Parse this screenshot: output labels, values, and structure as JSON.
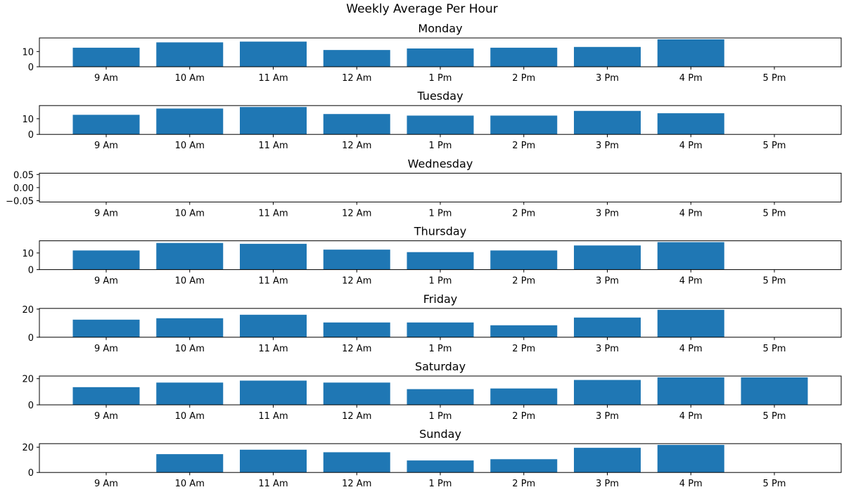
{
  "title": "Weekly Average Per Hour",
  "colors": {
    "bar": "#1f77b4",
    "axis": "#000000"
  },
  "chart_data": [
    {
      "type": "bar",
      "title": "Monday",
      "categories": [
        "9 Am",
        "10 Am",
        "11 Am",
        "12 Am",
        "1 Pm",
        "2 Pm",
        "3 Pm",
        "4 Pm",
        "5 Pm"
      ],
      "values": [
        12.5,
        16,
        16.5,
        11,
        12,
        12.5,
        13,
        18,
        0
      ],
      "yticks": [
        0,
        10
      ],
      "ylim": [
        0,
        18.9
      ],
      "grid": false
    },
    {
      "type": "bar",
      "title": "Tuesday",
      "categories": [
        "9 Am",
        "10 Am",
        "11 Am",
        "12 Am",
        "1 Pm",
        "2 Pm",
        "3 Pm",
        "4 Pm",
        "5 Pm"
      ],
      "values": [
        12.5,
        16.5,
        17.5,
        13,
        12,
        12,
        15,
        13.5,
        0
      ],
      "yticks": [
        0,
        10
      ],
      "ylim": [
        0,
        18.4
      ],
      "grid": false
    },
    {
      "type": "bar",
      "title": "Wednesday",
      "categories": [
        "9 Am",
        "10 Am",
        "11 Am",
        "12 Am",
        "1 Pm",
        "2 Pm",
        "3 Pm",
        "4 Pm",
        "5 Pm"
      ],
      "values": [
        0,
        0,
        0,
        0,
        0,
        0,
        0,
        0,
        0
      ],
      "yticks": [
        -0.05,
        0,
        0.05
      ],
      "ytick_labels": [
        "−0.05",
        "0.00",
        "0.05"
      ],
      "ylim": [
        -0.055,
        0.055
      ],
      "grid": false
    },
    {
      "type": "bar",
      "title": "Thursday",
      "categories": [
        "9 Am",
        "10 Am",
        "11 Am",
        "12 Am",
        "1 Pm",
        "2 Pm",
        "3 Pm",
        "4 Pm",
        "5 Pm"
      ],
      "values": [
        11.5,
        16,
        15.5,
        12,
        10.5,
        11.5,
        14.5,
        16.5,
        0
      ],
      "yticks": [
        0,
        10
      ],
      "ylim": [
        0,
        17.3
      ],
      "grid": false
    },
    {
      "type": "bar",
      "title": "Friday",
      "categories": [
        "9 Am",
        "10 Am",
        "11 Am",
        "12 Am",
        "1 Pm",
        "2 Pm",
        "3 Pm",
        "4 Pm",
        "5 Pm"
      ],
      "values": [
        12.5,
        13.5,
        16,
        10.5,
        10.5,
        8.5,
        14,
        19.5,
        0
      ],
      "yticks": [
        0,
        20
      ],
      "ylim": [
        0,
        20.5
      ],
      "grid": false
    },
    {
      "type": "bar",
      "title": "Saturday",
      "categories": [
        "9 Am",
        "10 Am",
        "11 Am",
        "12 Am",
        "1 Pm",
        "2 Pm",
        "3 Pm",
        "4 Pm",
        "5 Pm"
      ],
      "values": [
        13.5,
        17,
        18.5,
        17,
        12,
        12.5,
        19,
        21,
        21
      ],
      "yticks": [
        0,
        20
      ],
      "ylim": [
        0,
        22
      ],
      "grid": false
    },
    {
      "type": "bar",
      "title": "Sunday",
      "categories": [
        "9 Am",
        "10 Am",
        "11 Am",
        "12 Am",
        "1 Pm",
        "2 Pm",
        "3 Pm",
        "4 Pm",
        "5 Pm"
      ],
      "values": [
        0,
        14.5,
        18,
        16,
        9.5,
        10.5,
        19.5,
        21.8,
        0
      ],
      "yticks": [
        0,
        20
      ],
      "ylim": [
        0,
        22.8
      ],
      "grid": false
    }
  ]
}
